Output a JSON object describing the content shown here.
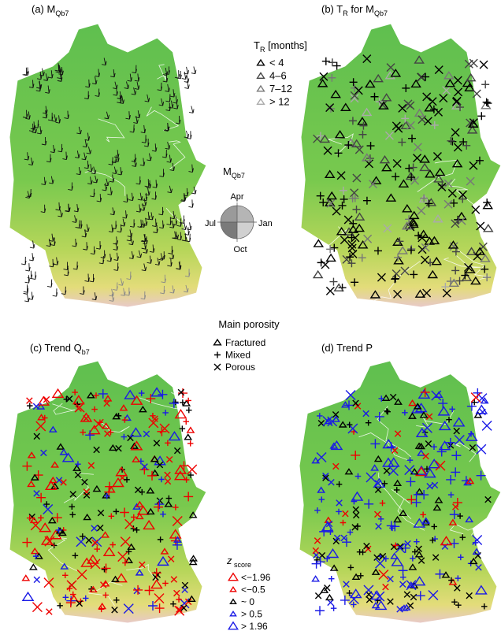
{
  "panels": [
    {
      "title": [
        "(a) M",
        "Qb7"
      ]
    },
    {
      "title": [
        "(b) T",
        "R",
        " for  M",
        "Qb7"
      ]
    },
    {
      "title": [
        "(c) Trend Q",
        "b7"
      ]
    },
    {
      "title": [
        "(d) Trend P"
      ]
    }
  ],
  "tr_legend": {
    "title": [
      "T",
      "R",
      " [months]"
    ],
    "items": [
      "< 4",
      "4–6",
      "7–12",
      "> 12"
    ]
  },
  "clock": {
    "title": [
      "M",
      "Qb7"
    ],
    "labels": [
      "Apr",
      "Jul",
      "Jan",
      "Oct"
    ]
  },
  "porosity_legend": {
    "title": "Main porosity",
    "items": [
      "Fractured",
      "Mixed",
      "Porous"
    ]
  },
  "z_legend": {
    "title": [
      "z",
      " score"
    ],
    "items": [
      "<−1.96",
      "<−0.5",
      "~ 0",
      "> 0.5",
      "> 1.96"
    ]
  }
}
